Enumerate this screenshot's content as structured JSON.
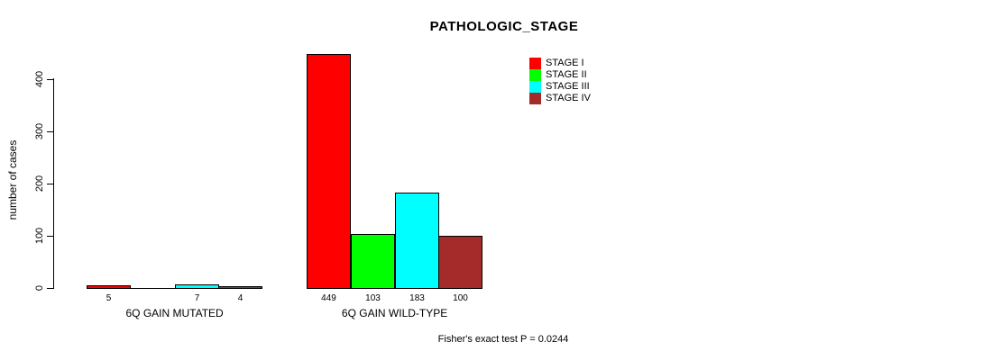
{
  "chart_data": {
    "type": "bar",
    "title": "PATHOLOGIC_STAGE",
    "ylabel": "number of cases",
    "ylim": [
      0,
      400
    ],
    "yticks": [
      0,
      100,
      200,
      300,
      400
    ],
    "categories": [
      "6Q GAIN MUTATED",
      "6Q GAIN WILD-TYPE"
    ],
    "series": [
      {
        "name": "STAGE I",
        "color": "#ff0000",
        "values": [
          5,
          449
        ]
      },
      {
        "name": "STAGE II",
        "color": "#00ff00",
        "values": [
          0,
          103
        ]
      },
      {
        "name": "STAGE III",
        "color": "#00ffff",
        "values": [
          7,
          183
        ]
      },
      {
        "name": "STAGE IV",
        "color": "#a52a2a",
        "values": [
          4,
          100
        ]
      }
    ],
    "bar_value_labels_shown": [
      "5",
      "7",
      "4",
      "449",
      "103",
      "183",
      "100"
    ],
    "annotation": "Fisher's exact test P = 0.0244",
    "legend_position": "top-right",
    "grid": false,
    "bar_border_color": "#000000",
    "background_color": "#ffffff"
  }
}
